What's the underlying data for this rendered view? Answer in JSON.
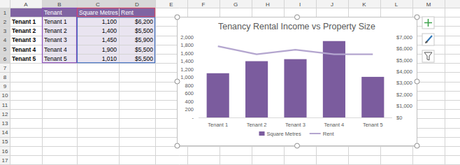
{
  "sheet": {
    "column_headers": [
      "A",
      "B",
      "C",
      "D",
      "E",
      "F",
      "G",
      "H",
      "I",
      "J",
      "K",
      "L",
      "M"
    ],
    "row_headers": [
      1,
      2,
      3,
      4,
      5,
      6,
      7,
      8,
      9,
      10,
      11,
      12,
      13,
      14,
      15,
      16,
      17
    ],
    "table": [
      [
        null,
        "Tenant",
        "Square Metres",
        "Rent"
      ],
      [
        "Tenant 1",
        "Tenant 1",
        "1,100",
        "$6,200"
      ],
      [
        "Tenant 2",
        "Tenant 2",
        "1,400",
        "$5,500"
      ],
      [
        "Tenant 3",
        "Tenant 3",
        "1,450",
        "$5,900"
      ],
      [
        "Tenant 4",
        "Tenant 4",
        "1,900",
        "$5,500"
      ],
      [
        "Tenant 5",
        "Tenant 5",
        "1,010",
        "$5,500"
      ]
    ]
  },
  "chart_data": {
    "type": "bar",
    "title": "Tenancy Rental Income vs Property Size",
    "categories": [
      "Tenant 1",
      "Tenant 2",
      "Tenant 3",
      "Tenant 4",
      "Tenant 5"
    ],
    "series": [
      {
        "name": "Square Metres",
        "type": "bar",
        "color": "#7b5c9e",
        "values": [
          1100,
          1400,
          1450,
          1900,
          1010
        ]
      },
      {
        "name": "Rent",
        "type": "line",
        "color": "#b4a6cf",
        "axis": "y2",
        "values": [
          6200,
          5500,
          5900,
          5500,
          5500
        ]
      }
    ],
    "ylim": [
      0,
      2000
    ],
    "yticks": [
      {
        "value": 0,
        "label": "-"
      },
      200,
      400,
      600,
      800,
      {
        "value": 1000,
        "label": "1,000"
      },
      {
        "value": 1200,
        "label": "1,200"
      },
      {
        "value": 1400,
        "label": "1,400"
      },
      {
        "value": 1600,
        "label": "1,600"
      },
      {
        "value": 1800,
        "label": "1,800"
      },
      {
        "value": 2000,
        "label": "2,000"
      }
    ],
    "y2lim": [
      0,
      7000
    ],
    "y2ticks": [
      {
        "value": 0,
        "label": "$0"
      },
      {
        "value": 1000,
        "label": "$1,000"
      },
      {
        "value": 2000,
        "label": "$2,000"
      },
      {
        "value": 3000,
        "label": "$3,000"
      },
      {
        "value": 4000,
        "label": "$4,000"
      },
      {
        "value": 5000,
        "label": "$5,000"
      },
      {
        "value": 6000,
        "label": "$6,000"
      },
      {
        "value": 7000,
        "label": "$7,000"
      }
    ],
    "grid": false,
    "legend": "bottom"
  }
}
